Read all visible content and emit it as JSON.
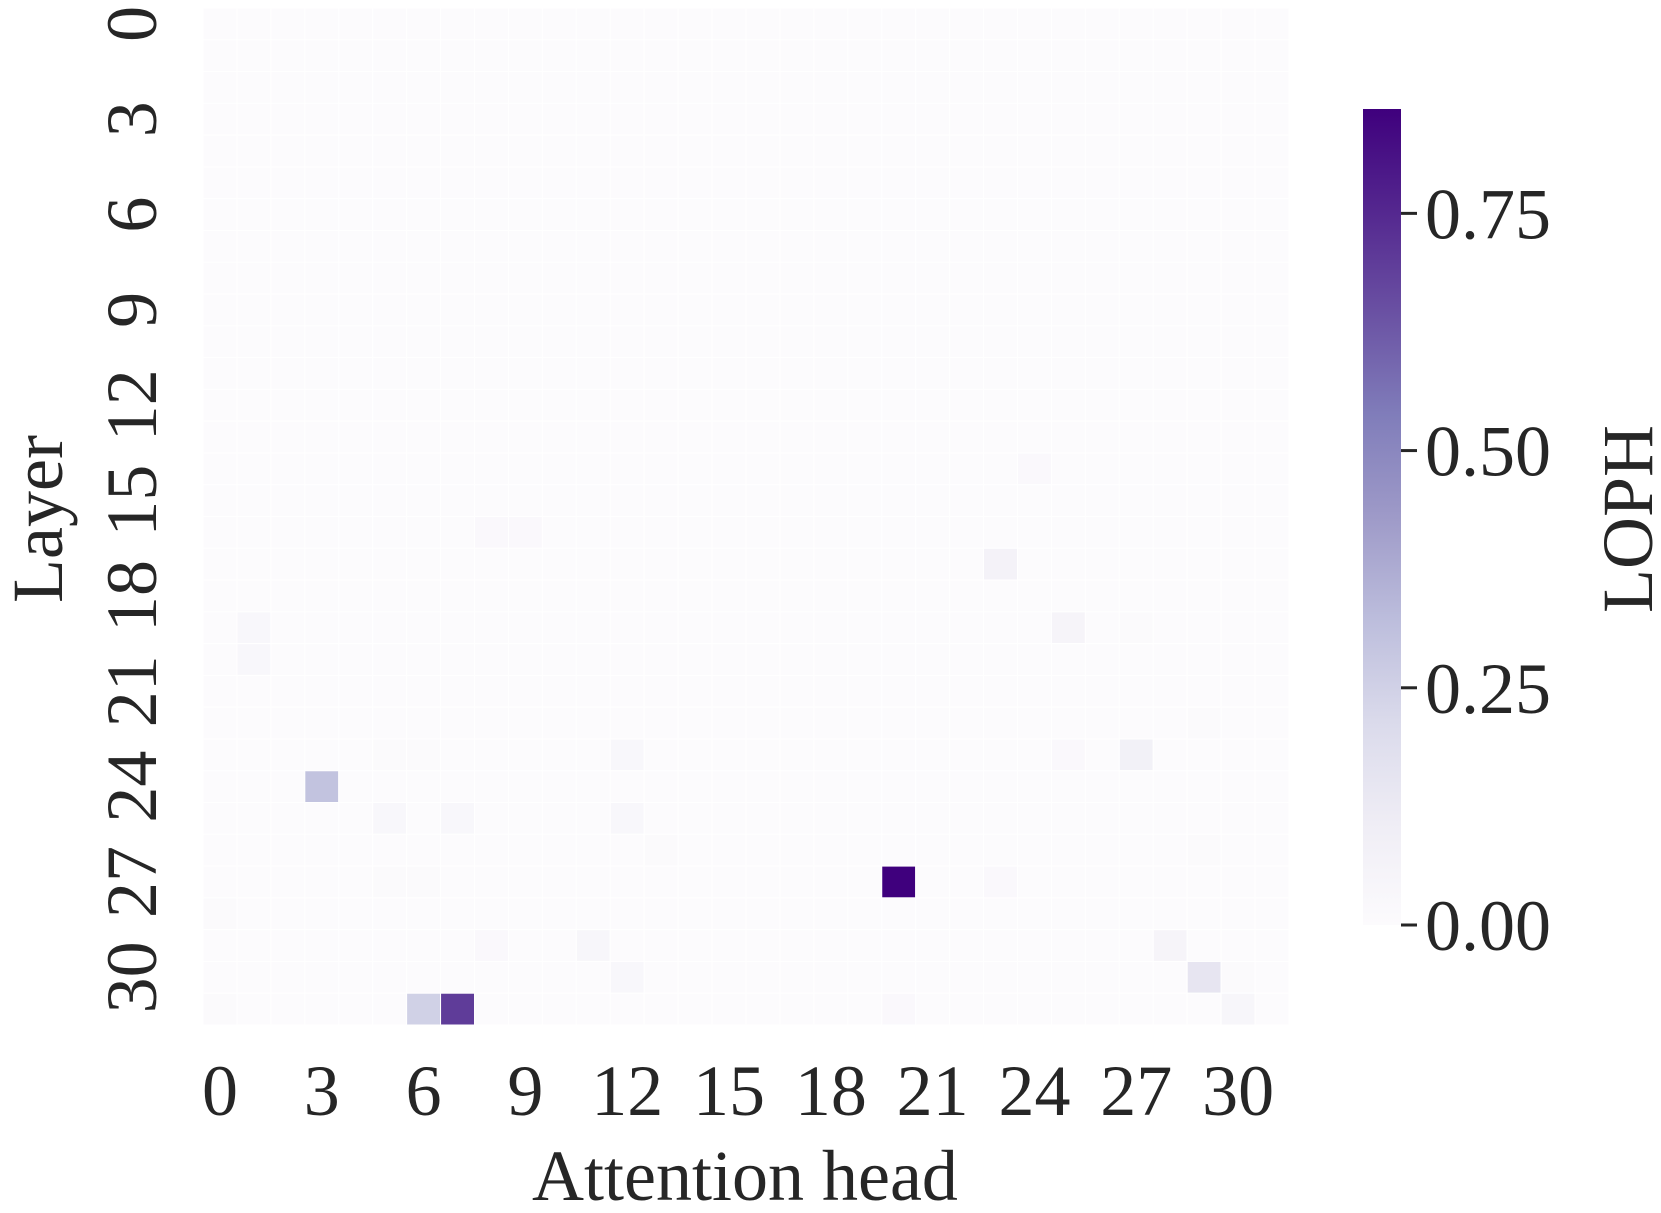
{
  "chart_data": {
    "type": "heatmap",
    "xlabel": "Attention head",
    "ylabel": "Layer",
    "colorbar_label": "LOPH",
    "colormap": "Purples",
    "xticks": [
      0,
      3,
      6,
      9,
      12,
      15,
      18,
      21,
      24,
      27,
      30
    ],
    "yticks": [
      0,
      3,
      6,
      9,
      12,
      15,
      18,
      21,
      24,
      27,
      30
    ],
    "clim": [
      0,
      0.86
    ],
    "cticks": [
      {
        "value": 0,
        "label": "0.00"
      },
      {
        "value": 0.25,
        "label": "0.25"
      },
      {
        "value": 0.5,
        "label": "0.50"
      },
      {
        "value": 0.75,
        "label": "0.75"
      }
    ],
    "z": [
      [
        0,
        0,
        0,
        0,
        0,
        0,
        0,
        0,
        0,
        0,
        0,
        0,
        0,
        0,
        0,
        0,
        0,
        0,
        0,
        0,
        0,
        0,
        0,
        0,
        0,
        0,
        0,
        0,
        0,
        0,
        0,
        0
      ],
      [
        0,
        0,
        0,
        0,
        0,
        0,
        0,
        0,
        0,
        0,
        0,
        0,
        0,
        0,
        0,
        0,
        0,
        0,
        0,
        0,
        0,
        0,
        0,
        0,
        0,
        0,
        0,
        0,
        0,
        0,
        0,
        0
      ],
      [
        0,
        0,
        0,
        0,
        0,
        0,
        0,
        0,
        0,
        0,
        0,
        0,
        0,
        0,
        0,
        0,
        0,
        0,
        0,
        0,
        0,
        0,
        0,
        0,
        0,
        0,
        0,
        0,
        0,
        0,
        0,
        0
      ],
      [
        0,
        0,
        0,
        0,
        0,
        0,
        0,
        0,
        0,
        0,
        0,
        0,
        0,
        0,
        0,
        0,
        0,
        0,
        0,
        0,
        0,
        0,
        0,
        0,
        0,
        0,
        0,
        0,
        0,
        0,
        0,
        0
      ],
      [
        0,
        0,
        0,
        0,
        0,
        0,
        0,
        0,
        0,
        0,
        0,
        0,
        0,
        0,
        0,
        0,
        0,
        0,
        0,
        0,
        0,
        0,
        0,
        0,
        0,
        0,
        0,
        0,
        0,
        0,
        0,
        0
      ],
      [
        0,
        0,
        0,
        0,
        0,
        0,
        0,
        0,
        0,
        0,
        0,
        0,
        0,
        0,
        0,
        0,
        0,
        0,
        0,
        0,
        0,
        0,
        0,
        0,
        0,
        0,
        0,
        0,
        0,
        0,
        0,
        0
      ],
      [
        0,
        0,
        0,
        0,
        0,
        0,
        0,
        0,
        0,
        0,
        0,
        0,
        0,
        0,
        0,
        0,
        0,
        0,
        0,
        0,
        0,
        0,
        0,
        0,
        0,
        0,
        0,
        0,
        0,
        0,
        0,
        0
      ],
      [
        0,
        0,
        0,
        0,
        0,
        0,
        0,
        0,
        0,
        0,
        0,
        0,
        0,
        0,
        0,
        0,
        0,
        0,
        0,
        0,
        0,
        0,
        0,
        0,
        0,
        0,
        0,
        0,
        0,
        0,
        0,
        0
      ],
      [
        0,
        0,
        0,
        0,
        0,
        0,
        0,
        0,
        0,
        0,
        0,
        0,
        0,
        0,
        0,
        0,
        0,
        0,
        0,
        0,
        0,
        0,
        0,
        0,
        0,
        0,
        0,
        0,
        0,
        0,
        0,
        0
      ],
      [
        0,
        0,
        0,
        0,
        0,
        0,
        0,
        0,
        0,
        0,
        0,
        0,
        0,
        0,
        0,
        0,
        0,
        0,
        0,
        0,
        0,
        0,
        0,
        0,
        0,
        0,
        0,
        0,
        0,
        0,
        0,
        0
      ],
      [
        0,
        0,
        0,
        0,
        0,
        0,
        0,
        0,
        0,
        0,
        0,
        0,
        0,
        0,
        0,
        0,
        0,
        0,
        0,
        0,
        0,
        0,
        0,
        0,
        0,
        0,
        0,
        0,
        0,
        0,
        0,
        0
      ],
      [
        0,
        0,
        0,
        0,
        0,
        0,
        0,
        0,
        0,
        0,
        0,
        0,
        0,
        0,
        0,
        0,
        0,
        0,
        0,
        0,
        0,
        0,
        0,
        0,
        0,
        0,
        0,
        0,
        0,
        0,
        0,
        0
      ],
      [
        0,
        0,
        0,
        0,
        0,
        0,
        0,
        0,
        0,
        0,
        0,
        0,
        0,
        0,
        0,
        0,
        0,
        0,
        0,
        0,
        0,
        0,
        0,
        0,
        0,
        0,
        0,
        0,
        0,
        0,
        0,
        0
      ],
      [
        0,
        0,
        0,
        0,
        0,
        0,
        0,
        0,
        0,
        0,
        0,
        0,
        0,
        0,
        0,
        0,
        0,
        0,
        0,
        0,
        0,
        0,
        0,
        0,
        0,
        0,
        0,
        0,
        0,
        0,
        0,
        0
      ],
      [
        0,
        0,
        0,
        0,
        0,
        0,
        0,
        0,
        0,
        0,
        0,
        0,
        0,
        0,
        0,
        0,
        0,
        0,
        0,
        0,
        0,
        0,
        0,
        0,
        0.02,
        0,
        0,
        0,
        0,
        0,
        0,
        0
      ],
      [
        0,
        0,
        0,
        0,
        0,
        0,
        0,
        0,
        0,
        0,
        0,
        0,
        0,
        0,
        0,
        0,
        0,
        0,
        0,
        0,
        0,
        0,
        0,
        0,
        0,
        0,
        0,
        0,
        0,
        0,
        0,
        0
      ],
      [
        0,
        0,
        0,
        0,
        0,
        0,
        0,
        0,
        0.02,
        0.02,
        0,
        0,
        0,
        0,
        0,
        0,
        0,
        0,
        0,
        0,
        0,
        0,
        0,
        0,
        0,
        0,
        0,
        0,
        0,
        0,
        0,
        0
      ],
      [
        0,
        0,
        0,
        0,
        0,
        0,
        0,
        0,
        0,
        0,
        0,
        0,
        0,
        0,
        0,
        0,
        0,
        0,
        0,
        0,
        0,
        0,
        0,
        0.07,
        0,
        0,
        0,
        0,
        0,
        0,
        0,
        0
      ],
      [
        0,
        0,
        0,
        0,
        0,
        0,
        0,
        0,
        0,
        0,
        0,
        0,
        0,
        0,
        0,
        0,
        0,
        0,
        0,
        0,
        0,
        0,
        0,
        0,
        0,
        0,
        0,
        0,
        0,
        0,
        0,
        0
      ],
      [
        0,
        0.03,
        0,
        0,
        0,
        0,
        0,
        0,
        0,
        0,
        0,
        0,
        0,
        0,
        0,
        0,
        0,
        0,
        0,
        0,
        0,
        0,
        0,
        0,
        0,
        0.05,
        0,
        0.01,
        0,
        0,
        0,
        0
      ],
      [
        0,
        0.03,
        0,
        0,
        0,
        0,
        0,
        0,
        0,
        0,
        0,
        0,
        0,
        0,
        0,
        0,
        0,
        0,
        0,
        0,
        0,
        0,
        0,
        0,
        0,
        0,
        0,
        0,
        0,
        0,
        0,
        0
      ],
      [
        0,
        0,
        0,
        0,
        0,
        0,
        0,
        0,
        0,
        0,
        0,
        0,
        0,
        0,
        0,
        0,
        0,
        0,
        0,
        0,
        0,
        0,
        0,
        0,
        0,
        0,
        0,
        0,
        0,
        0,
        0,
        0
      ],
      [
        0,
        0,
        0,
        0,
        0,
        0,
        0,
        0,
        0,
        0,
        0,
        0,
        0,
        0,
        0,
        0,
        0,
        0,
        0,
        0,
        0,
        0,
        0,
        0,
        0,
        0,
        0,
        0,
        0,
        0.01,
        0,
        0
      ],
      [
        0,
        0,
        0,
        0,
        0,
        0.01,
        0.01,
        0,
        0,
        0,
        0,
        0,
        0.03,
        0,
        0,
        0,
        0,
        0,
        0,
        0,
        0,
        0,
        0,
        0,
        0,
        0.02,
        0,
        0.08,
        0,
        0,
        0,
        0
      ],
      [
        0,
        0,
        0,
        0.3,
        0,
        0,
        0,
        0,
        0,
        0,
        0,
        0,
        0,
        0,
        0,
        0,
        0,
        0,
        0,
        0,
        0,
        0,
        0,
        0,
        0,
        0,
        0,
        0,
        0,
        0,
        0,
        0
      ],
      [
        0,
        0,
        0,
        0,
        0,
        0.03,
        0,
        0.03,
        0,
        0,
        0,
        0,
        0.03,
        0,
        0,
        0,
        0,
        0,
        0,
        0,
        0,
        0,
        0,
        0,
        0,
        0,
        0,
        0,
        0,
        0,
        0,
        0
      ],
      [
        0,
        0,
        0,
        0,
        0,
        0,
        0,
        0,
        0,
        0,
        0,
        0,
        0,
        0.01,
        0,
        0,
        0,
        0,
        0,
        0,
        0,
        0,
        0,
        0,
        0,
        0,
        0,
        0,
        0,
        0.01,
        0,
        0
      ],
      [
        0,
        0,
        0,
        0,
        0,
        0.01,
        0.01,
        0,
        0,
        0,
        0,
        0,
        0,
        0,
        0,
        0,
        0,
        0,
        0,
        0,
        0.86,
        0,
        0,
        0.02,
        0,
        0,
        0,
        0,
        0,
        0,
        0,
        0
      ],
      [
        0.01,
        0,
        0,
        0,
        0,
        0,
        0,
        0,
        0,
        0,
        0,
        0,
        0,
        0,
        0,
        0,
        0,
        0,
        0,
        0,
        0,
        0,
        0,
        0,
        0,
        0,
        0,
        0,
        0,
        0,
        0,
        0
      ],
      [
        0,
        0,
        0,
        0,
        0,
        0,
        0,
        0,
        0.02,
        0,
        0,
        0.04,
        0,
        0,
        0,
        0,
        0,
        0,
        0,
        0,
        0,
        0,
        0,
        0,
        0,
        0,
        0,
        0,
        0.05,
        0,
        0,
        0
      ],
      [
        0,
        0,
        0,
        0,
        0,
        0,
        0,
        0,
        0,
        0,
        0,
        0,
        0.03,
        0,
        0,
        0,
        0,
        0,
        0,
        0,
        0,
        0,
        0,
        0,
        0,
        0,
        0,
        0,
        0,
        0.15,
        0.01,
        0
      ],
      [
        0.01,
        0,
        0,
        0,
        0,
        0,
        0.25,
        0.7,
        0,
        0,
        0,
        0,
        0,
        0,
        0,
        0,
        0,
        0,
        0,
        0,
        0.02,
        0,
        0,
        0,
        0,
        0,
        0,
        0,
        0,
        0,
        0.04,
        0
      ]
    ]
  }
}
